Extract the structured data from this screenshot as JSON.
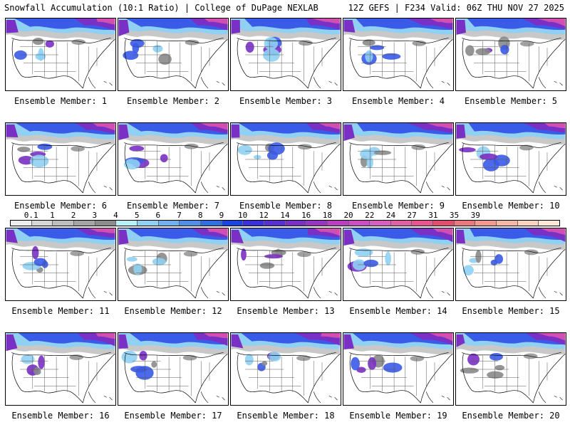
{
  "header": {
    "left": "Snowfall Accumulation (10:1 Ratio) | College of DuPage NEXLAB",
    "right": "12Z GEFS | F234 Valid: 06Z THU NOV 27 2025"
  },
  "members": [
    "Ensemble Member: 1",
    "Ensemble Member: 2",
    "Ensemble Member: 3",
    "Ensemble Member: 4",
    "Ensemble Member: 5",
    "Ensemble Member: 6",
    "Ensemble Member: 7",
    "Ensemble Member: 8",
    "Ensemble Member: 9",
    "Ensemble Member: 10",
    "Ensemble Member: 11",
    "Ensemble Member: 12",
    "Ensemble Member: 13",
    "Ensemble Member: 14",
    "Ensemble Member: 15",
    "Ensemble Member: 16",
    "Ensemble Member: 17",
    "Ensemble Member: 18",
    "Ensemble Member: 19",
    "Ensemble Member: 20"
  ],
  "colorbar": {
    "ticks": [
      "0.1",
      "1",
      "2",
      "3",
      "4",
      "5",
      "6",
      "7",
      "8",
      "9",
      "10",
      "12",
      "14",
      "16",
      "18",
      "20",
      "22",
      "24",
      "27",
      "31",
      "35",
      "39"
    ],
    "colors": [
      "#eeeeee",
      "#d6d6d6",
      "#bdbdbd",
      "#a4a4a4",
      "#8c8c8c",
      "#b9f0f6",
      "#8fd0f3",
      "#6fb0ee",
      "#4f8fe8",
      "#2f6fe2",
      "#1a44dd",
      "#3a2fd8",
      "#5a2fcf",
      "#7a2fc5",
      "#9a35c0",
      "#b83fc0",
      "#c94fc3",
      "#d660bf",
      "#e060a5",
      "#e8558f",
      "#e04f70",
      "#e8787c",
      "#f09a90",
      "#f5b8a8",
      "#f9d2c0",
      "#fde8d8"
    ]
  },
  "map_colors": {
    "gray_light": "#c8c8c8",
    "gray_dark": "#8a8a8a",
    "cyan": "#8fd0f3",
    "blue": "#3a5ae8",
    "purple": "#7a2fc5",
    "magenta": "#d04fb0",
    "pink": "#e8559a"
  }
}
